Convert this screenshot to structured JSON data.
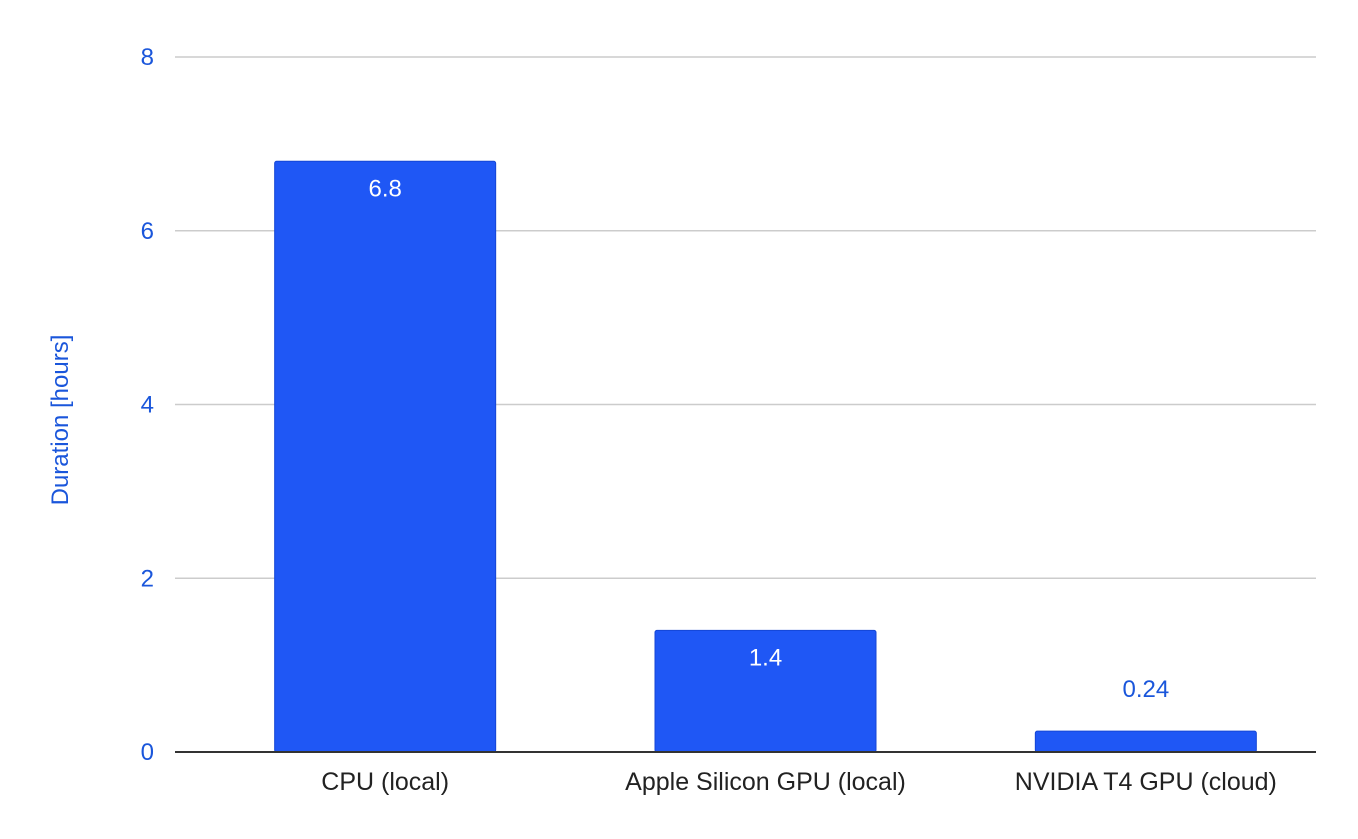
{
  "chart_data": {
    "type": "bar",
    "title": "",
    "xlabel": "",
    "ylabel": "Duration [hours]",
    "categories": [
      "CPU (local)",
      "Apple Silicon GPU (local)",
      "NVIDIA T4 GPU (cloud)"
    ],
    "values": [
      6.8,
      1.4,
      0.24
    ],
    "value_labels": [
      "6.8",
      "1.4",
      "0.24"
    ],
    "ylim": [
      0,
      8
    ],
    "yticks": [
      0,
      2,
      4,
      6,
      8
    ],
    "grid": true,
    "legend": "none",
    "colors": {
      "bar": "#1f57f5",
      "axis_text": "#1a56db",
      "category_text": "#222222",
      "inside_label": "#ffffff",
      "gridline": "#cccccc",
      "baseline": "#333333"
    }
  }
}
